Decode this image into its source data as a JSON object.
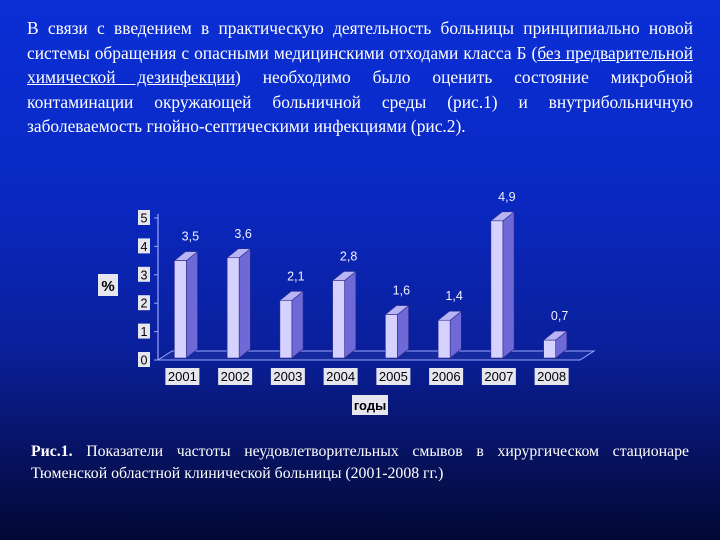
{
  "intro": {
    "part1": "В связи с введением в практическую деятельность больницы принципиально новой системы обращения с опасными медицинскими отходами класса Б (",
    "underlined": "без предварительной химической дезинфекции",
    "part2": ") необходимо было оценить состояние микробной контаминации окружающей больничной среды (рис.1) и внутрибольничную заболеваемость гнойно-септическими инфекциями (рис.2)."
  },
  "caption": {
    "label": "Рис.1.",
    "text": " Показатели частоты неудовлетворительных смывов в хирургическом стационаре Тюменской областной клинической больницы (2001-2008 гг.)"
  },
  "chart_data": {
    "type": "bar",
    "categories": [
      "2001",
      "2002",
      "2003",
      "2004",
      "2005",
      "2006",
      "2007",
      "2008"
    ],
    "values": [
      3.5,
      3.6,
      2.1,
      2.8,
      1.6,
      1.4,
      4.9,
      0.7
    ],
    "data_labels": [
      "3,5",
      "3,6",
      "2,1",
      "2,8",
      "1,6",
      "1,4",
      "4,9",
      "0,7"
    ],
    "ylabel": "%",
    "xlabel": "годы",
    "yticks": [
      "0",
      "1",
      "2",
      "3",
      "4",
      "5"
    ],
    "ylim": [
      0,
      5
    ],
    "grid": false,
    "legend": "none",
    "bar_front_color": "#d6d2ff",
    "bar_side_color": "#6f69d8",
    "bar_top_color": "#b9b4f5",
    "axis_color": "#9aa6ff",
    "tick_box_color": "#e6e6ee"
  }
}
